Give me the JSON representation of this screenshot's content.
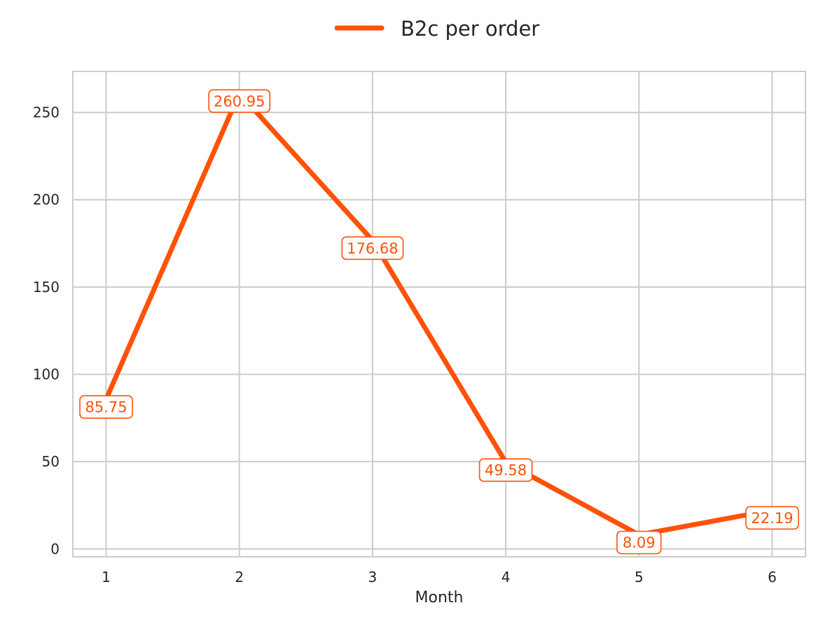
{
  "chart_data": {
    "type": "line",
    "x": [
      1,
      2,
      3,
      4,
      5,
      6
    ],
    "series": [
      {
        "name": "B2c per order",
        "values": [
          85.75,
          260.95,
          176.68,
          49.58,
          8.09,
          22.19
        ]
      }
    ],
    "data_labels": [
      "85.75",
      "260.95",
      "176.68",
      "49.58",
      "8.09",
      "22.19"
    ],
    "xlabel": "Month",
    "ylabel": "",
    "xticks": [
      "1",
      "2",
      "3",
      "4",
      "5",
      "6"
    ],
    "yticks": [
      "0",
      "50",
      "100",
      "150",
      "200",
      "250"
    ],
    "xlim": [
      0.75,
      6.25
    ],
    "ylim": [
      -4.5,
      273.5
    ],
    "grid": true,
    "legend_position": "top-center",
    "colors": {
      "series": "#ff5108",
      "grid": "#cccccc",
      "axis": "#cccccc",
      "text": "#262626",
      "label_bg": "#ffffff"
    }
  }
}
